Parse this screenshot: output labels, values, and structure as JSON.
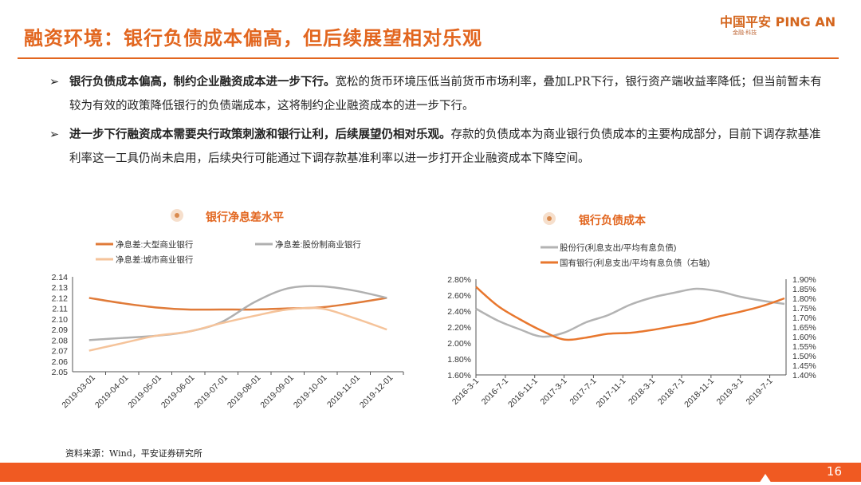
{
  "header": {
    "title": "融资环境：银行负债成本偏高，但后续展望相对乐观",
    "logo_cn": "中国平安",
    "logo_en": "PING AN",
    "logo_sub": "金融·科技"
  },
  "bullets": [
    {
      "bold": "银行负债成本偏高，制约企业融资成本进一步下行。",
      "text": "宽松的货币环境压低当前货币市场利率，叠加LPR下行，银行资产端收益率降低；但当前暂未有较为有效的政策降低银行的负债端成本，这将制约企业融资成本的进一步下行。"
    },
    {
      "bold": "进一步下行融资成本需要央行政策刺激和银行让利，后续展望仍相对乐观。",
      "text": "存款的负债成本为商业银行负债成本的主要构成部分，目前下调存款基准利率这一工具仍尚未启用，后续央行可能通过下调存款基准利率以进一步打开企业融资成本下降空间。"
    }
  ],
  "source": "资料来源：Wind，平安证券研究所",
  "page_number": "16",
  "chart_data": [
    {
      "type": "line",
      "title": "银行净息差水平",
      "categories": [
        "2019-03-01",
        "2019-04-01",
        "2019-05-01",
        "2019-06-01",
        "2019-07-01",
        "2019-08-01",
        "2019-09-01",
        "2019-10-01",
        "2019-11-01",
        "2019-12-01"
      ],
      "ylim": [
        2.05,
        2.14
      ],
      "yticks": [
        "2.14",
        "2.13",
        "2.12",
        "2.11",
        "2.10",
        "2.09",
        "2.08",
        "2.07",
        "2.06",
        "2.05"
      ],
      "legend_position": "top",
      "series": [
        {
          "name": "净息差:大型商业银行",
          "color": "#e07b39",
          "values": [
            2.12,
            2.115,
            2.111,
            2.109,
            2.109,
            2.109,
            2.11,
            2.111,
            2.115,
            2.12
          ]
        },
        {
          "name": "净息差:股份制商业银行",
          "color": "#b0b0b0",
          "values": [
            2.08,
            2.082,
            2.084,
            2.088,
            2.097,
            2.116,
            2.129,
            2.131,
            2.127,
            2.12
          ]
        },
        {
          "name": "净息差:城市商业银行",
          "color": "#f5c39a",
          "values": [
            2.07,
            2.077,
            2.084,
            2.088,
            2.096,
            2.103,
            2.109,
            2.11,
            2.101,
            2.09
          ]
        }
      ]
    },
    {
      "type": "line",
      "title": "银行负债成本",
      "x": [
        "2016-3",
        "2016-6",
        "2016-9",
        "2016-12",
        "2017-3",
        "2017-6",
        "2017-9",
        "2017-12",
        "2018-3",
        "2018-6",
        "2018-9",
        "2018-12",
        "2019-3",
        "2019-6",
        "2019-9"
      ],
      "xtick_labels": [
        "2016-3-1",
        "2016-7-1",
        "2016-11-1",
        "2017-3-1",
        "2017-7-1",
        "2017-11-1",
        "2018-3-1",
        "2018-7-1",
        "2018-11-1",
        "2019-3-1",
        "2019-7-1"
      ],
      "ylim": [
        1.6,
        2.8
      ],
      "yticks": [
        "2.80%",
        "2.60%",
        "2.40%",
        "2.20%",
        "2.00%",
        "1.80%",
        "1.60%"
      ],
      "y2lim": [
        1.4,
        1.9
      ],
      "y2ticks": [
        "1.90%",
        "1.85%",
        "1.80%",
        "1.75%",
        "1.70%",
        "1.65%",
        "1.60%",
        "1.55%",
        "1.50%",
        "1.45%",
        "1.40%"
      ],
      "legend_position": "top",
      "series": [
        {
          "name": "股份行(利息支出/平均有息负债)",
          "axis": "left",
          "color": "#b3b3b3",
          "values": [
            2.43,
            2.28,
            2.17,
            2.08,
            2.13,
            2.26,
            2.35,
            2.48,
            2.57,
            2.63,
            2.68,
            2.65,
            2.58,
            2.53,
            2.49
          ]
        },
        {
          "name": "国有银行(利息支出/平均有息负债（右轴)",
          "axis": "right",
          "color": "#e8772e",
          "values": [
            1.86,
            1.76,
            1.69,
            1.63,
            1.585,
            1.595,
            1.615,
            1.62,
            1.635,
            1.655,
            1.675,
            1.705,
            1.73,
            1.76,
            1.8
          ]
        }
      ]
    }
  ]
}
